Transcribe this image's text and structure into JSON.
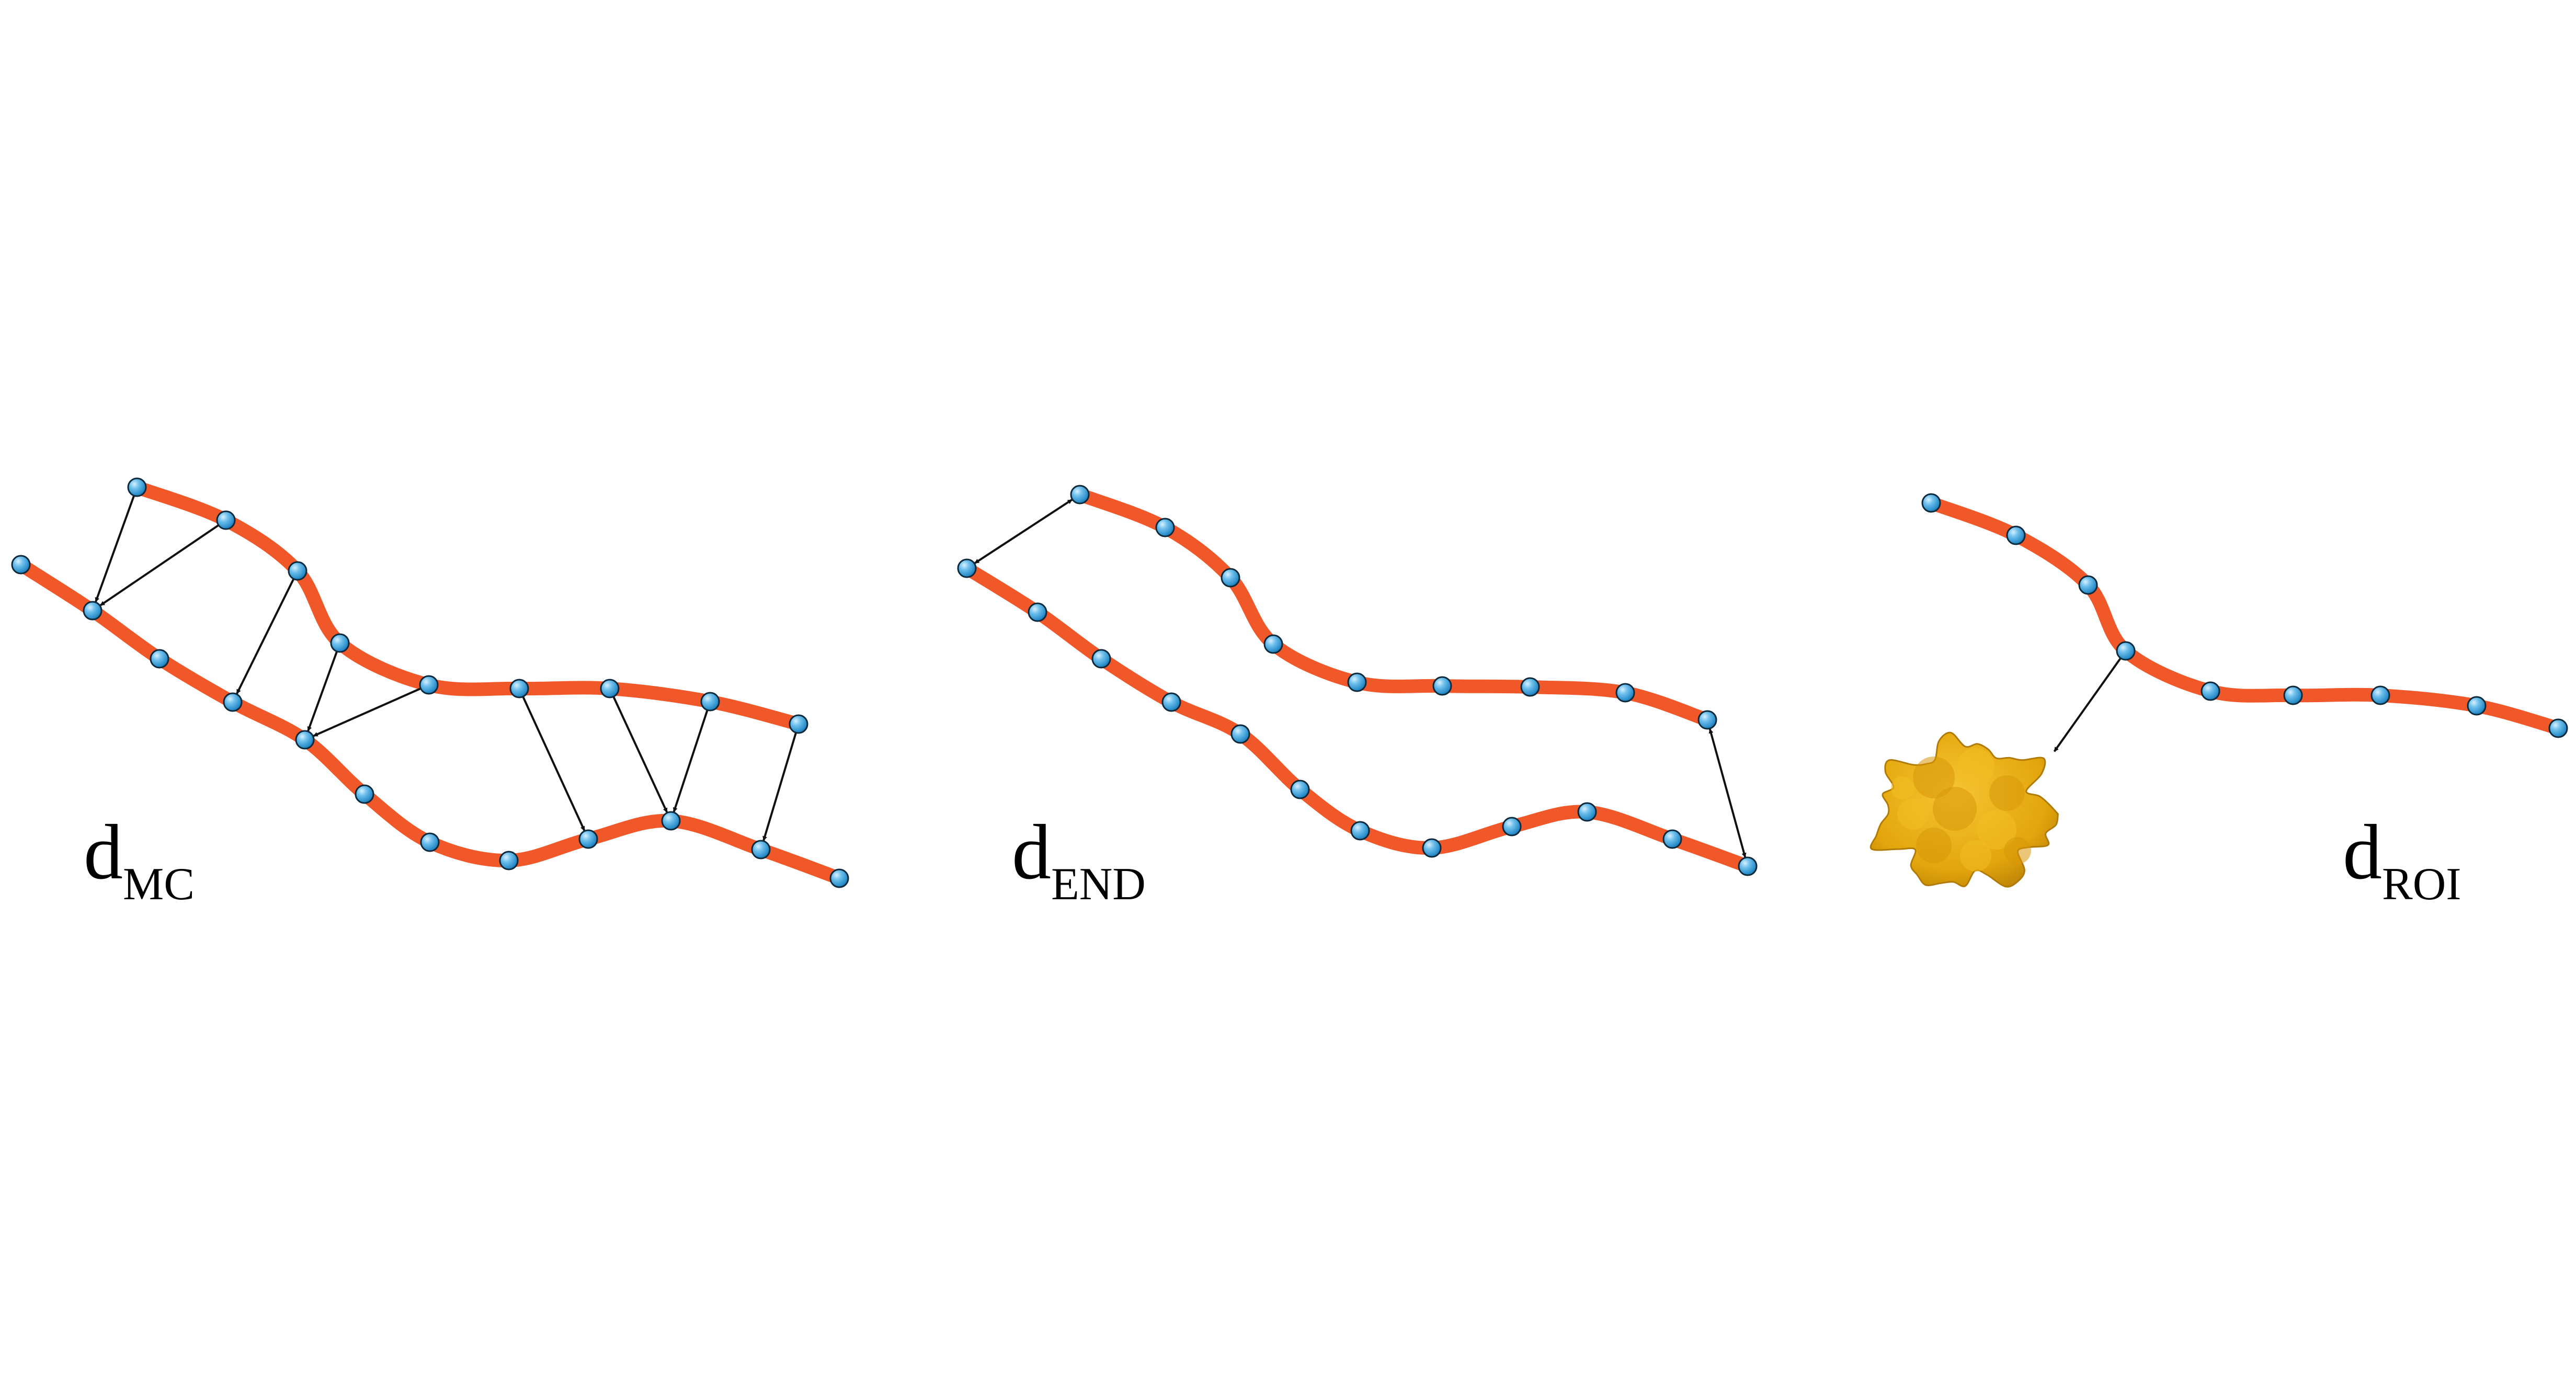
{
  "colors": {
    "background": "#ffffff",
    "chain": "#f0582a",
    "bead": "#3aa2dc",
    "bead_highlight": "#bfe6fb",
    "bead_outline": "#0d2a3d",
    "arrow": "#111111",
    "region_of_interest": "#e6a80e"
  },
  "panels": [
    {
      "key": "mc",
      "label_main": "d",
      "label_sub": "MC"
    },
    {
      "key": "end",
      "label_main": "d",
      "label_sub": "END"
    },
    {
      "key": "roi",
      "label_main": "d",
      "label_sub": "ROI"
    }
  ],
  "icons": [
    "bead-icon",
    "arrow-icon",
    "region-blob-icon"
  ]
}
